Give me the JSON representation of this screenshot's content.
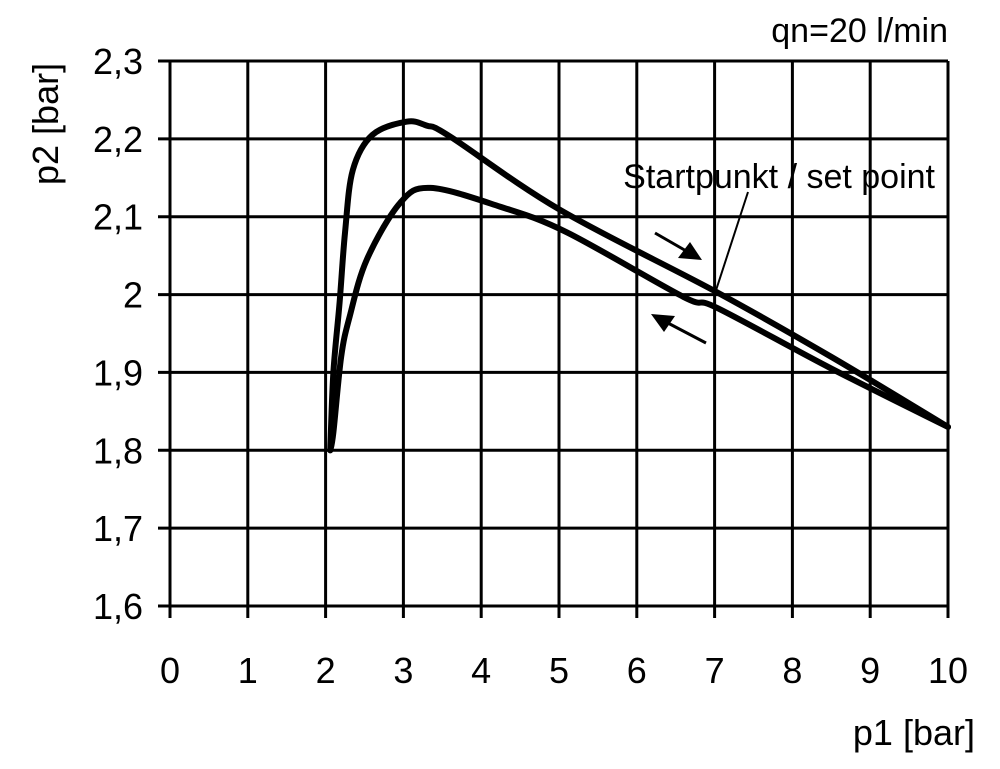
{
  "chart_data": {
    "type": "line",
    "title": "",
    "annotation_flow": "qn=20 l/min",
    "annotation_setpoint": "Startpunkt / set point",
    "setpoint": [
      7,
      2.0
    ],
    "xlabel": "p1 [bar]",
    "ylabel": "p2 [bar]",
    "xlim": [
      0,
      10
    ],
    "ylim": [
      1.6,
      2.3
    ],
    "grid": true,
    "x_ticks": [
      "0",
      "1",
      "2",
      "3",
      "4",
      "5",
      "6",
      "7",
      "8",
      "9",
      "10"
    ],
    "y_ticks": [
      "1,6",
      "1,7",
      "1,8",
      "1,9",
      "2",
      "2,1",
      "2,2",
      "2,3"
    ],
    "series": [
      {
        "points": [
          [
            2.06,
            1.8
          ],
          [
            2.1,
            1.9
          ],
          [
            2.18,
            1.99
          ],
          [
            2.25,
            2.08
          ],
          [
            2.35,
            2.16
          ],
          [
            2.6,
            2.205
          ],
          [
            3.04,
            2.222
          ],
          [
            3.3,
            2.217
          ],
          [
            3.6,
            2.203
          ],
          [
            5.01,
            2.109
          ],
          [
            7.03,
            2.003
          ],
          [
            8.5,
            1.92
          ],
          [
            10,
            1.83
          ]
        ]
      },
      {
        "points": [
          [
            2.06,
            1.8
          ],
          [
            2.1,
            1.823
          ],
          [
            2.2,
            1.92
          ],
          [
            2.31,
            1.972
          ],
          [
            2.53,
            2.045
          ],
          [
            2.96,
            2.118
          ],
          [
            3.35,
            2.137
          ],
          [
            4.24,
            2.113
          ],
          [
            5.1,
            2.08
          ],
          [
            6.6,
            1.997
          ],
          [
            7.03,
            1.983
          ],
          [
            8.5,
            1.905
          ],
          [
            10,
            1.83
          ]
        ]
      }
    ],
    "line_color": "#000000"
  }
}
